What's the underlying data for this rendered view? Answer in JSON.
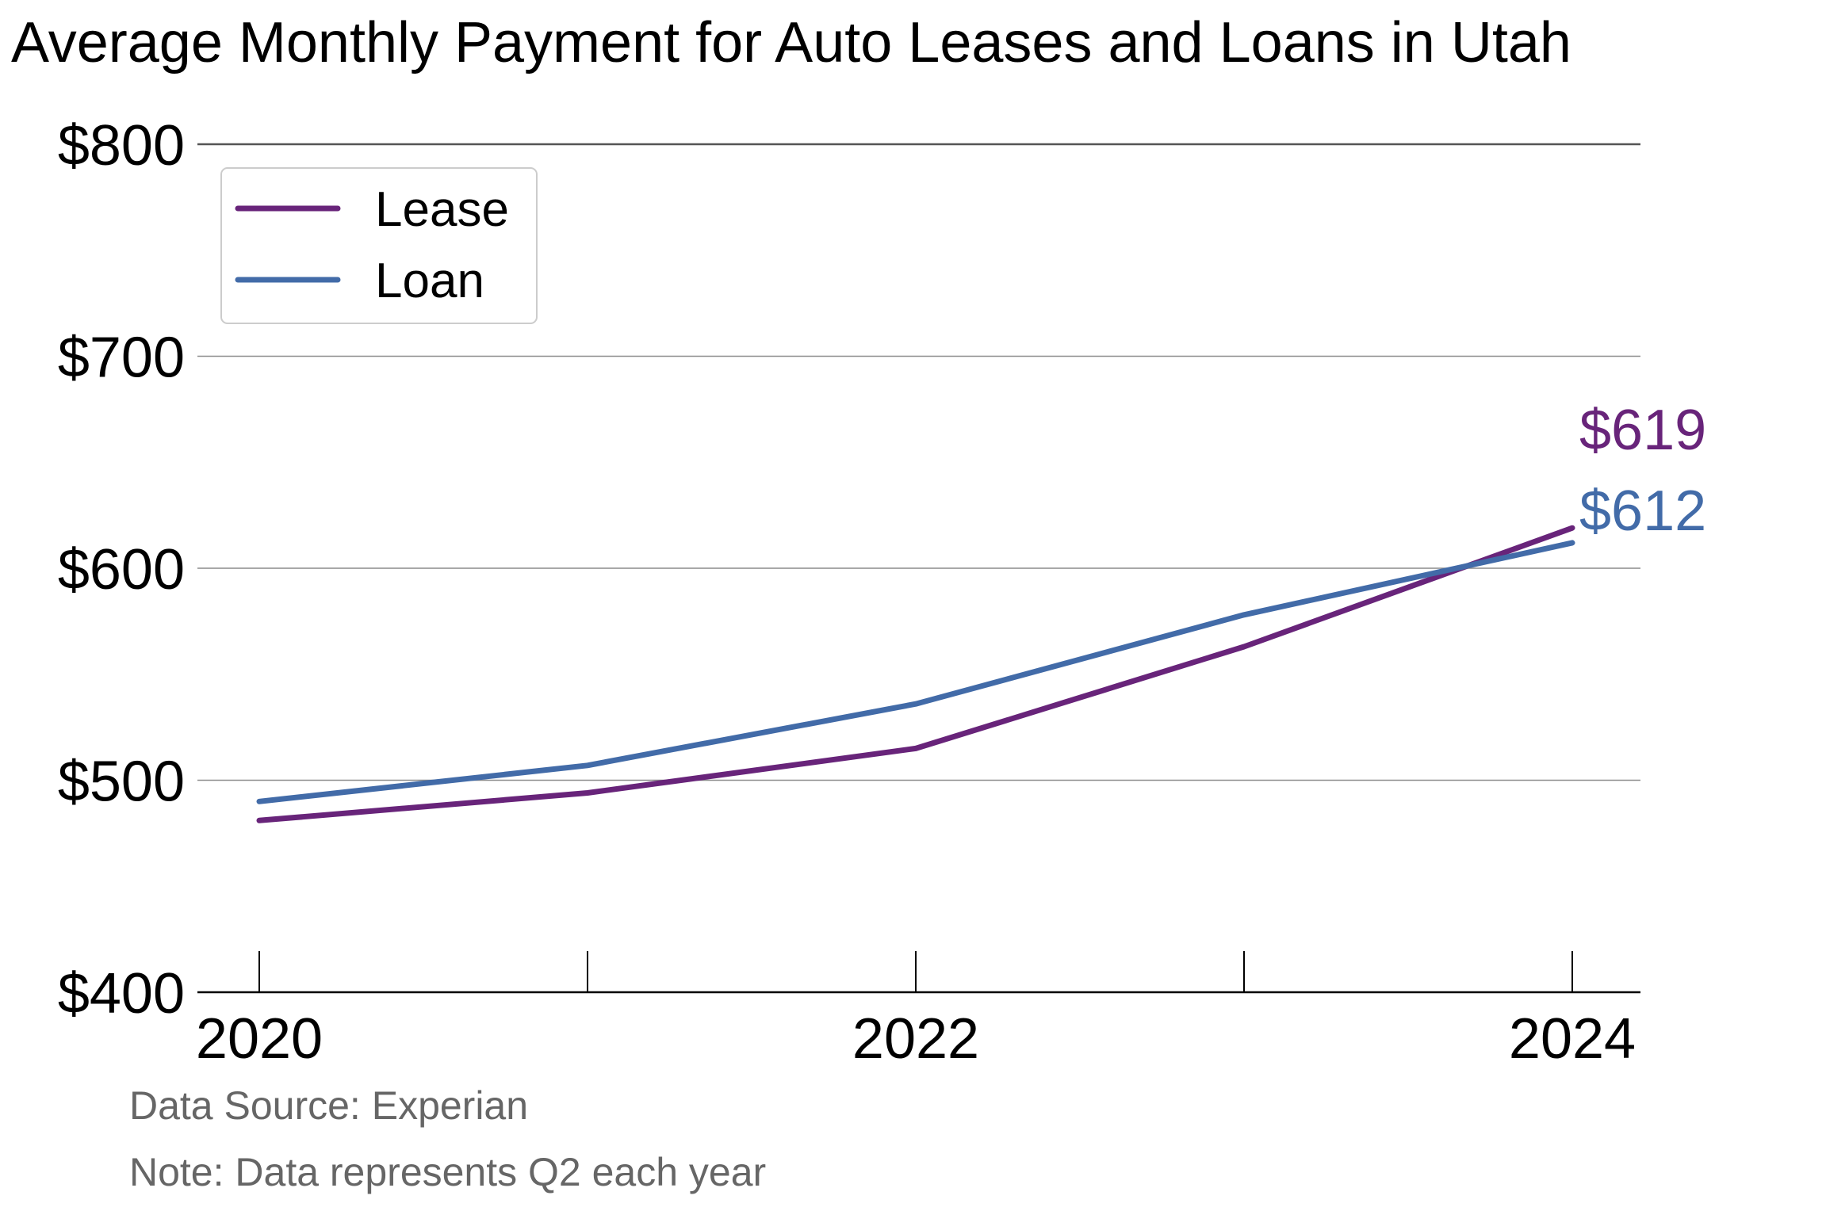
{
  "chart_data": {
    "type": "line",
    "title": "Average Monthly Payment for Auto Leases and Loans in Utah",
    "xlabel": "",
    "ylabel": "",
    "x": [
      2020,
      2021,
      2022,
      2023,
      2024
    ],
    "x_tick_labels": [
      "2020",
      "2022",
      "2024"
    ],
    "x_tick_label_values": [
      2020,
      2022,
      2024
    ],
    "xlim": [
      2020,
      2024
    ],
    "ylim": [
      400,
      800
    ],
    "y_ticks": [
      400,
      500,
      600,
      700,
      800
    ],
    "y_tick_labels": [
      "$400",
      "$500",
      "$600",
      "$700",
      "$800"
    ],
    "grid": "horizontal",
    "legend": "top-left",
    "series": [
      {
        "name": "Lease",
        "color": "#68247a",
        "values": [
          481,
          494,
          515,
          563,
          619
        ],
        "end_label": "$619"
      },
      {
        "name": "Loan",
        "color": "#426ba8",
        "values": [
          490,
          507,
          536,
          578,
          612
        ],
        "end_label": "$612"
      }
    ],
    "notes": [
      "Data Source: Experian",
      "Note: Data represents Q2 each year"
    ]
  }
}
